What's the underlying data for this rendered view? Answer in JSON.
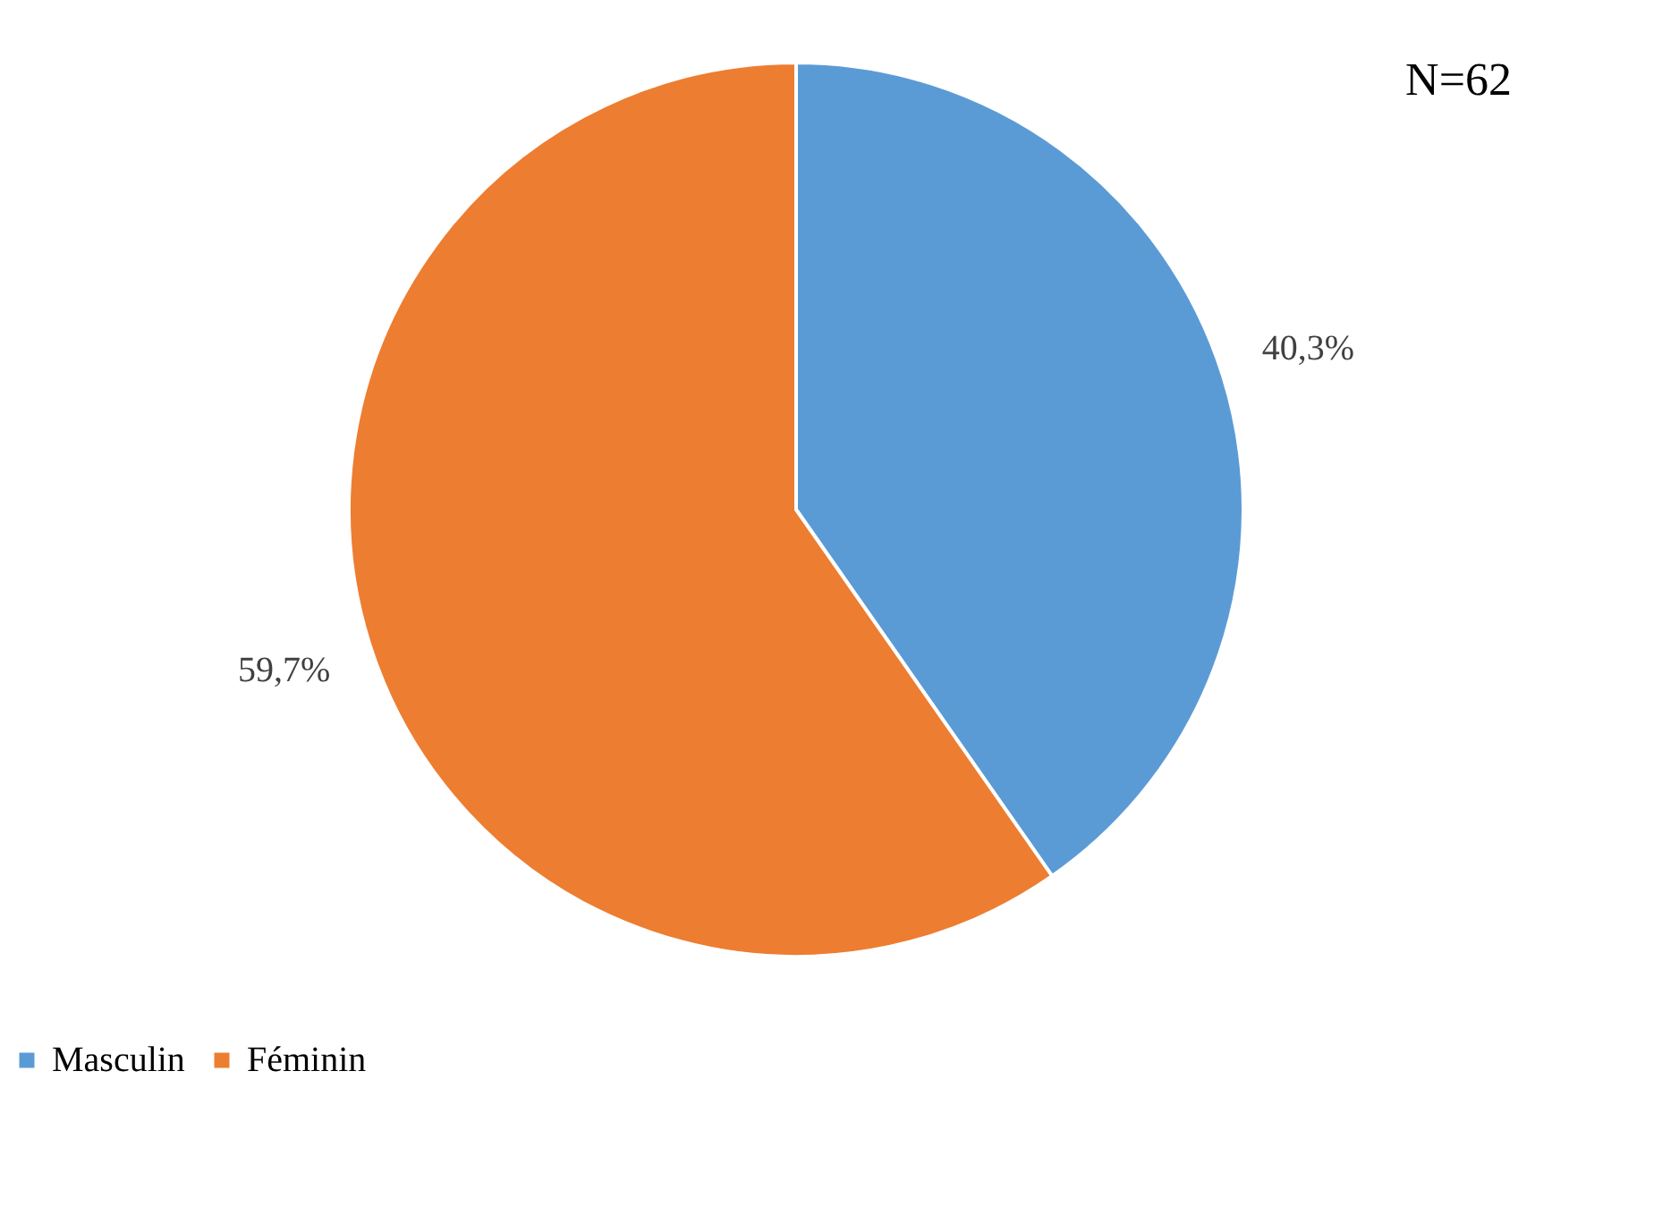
{
  "chart_data": {
    "type": "pie",
    "categories": [
      "Masculin",
      "Féminin"
    ],
    "values": [
      40.3,
      59.7
    ],
    "colors": [
      "#5b9bd5",
      "#ed7d31"
    ],
    "value_labels": [
      "40,3%",
      "59,7%"
    ],
    "annotations": [
      "N=62"
    ],
    "legend": "bottom"
  }
}
